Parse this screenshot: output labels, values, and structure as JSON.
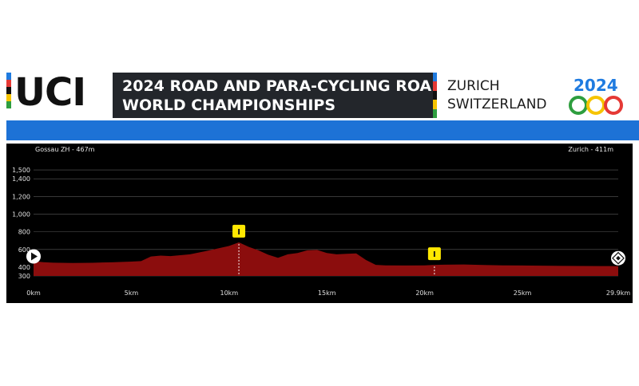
{
  "header": {
    "logo_text": "UCI",
    "title_line1": "2024 ROAD AND PARA-CYCLING ROAD",
    "title_line2": "WORLD CHAMPIONSHIPS",
    "location_city": "ZURICH",
    "location_country": "SWITZERLAND",
    "rainbow_colors": [
      "#1f7be0",
      "#e53935",
      "#111111",
      "#f6c400",
      "#2e9e3f"
    ]
  },
  "colors": {
    "profile_fill": "#8b0d0d",
    "marker": "#ffe800",
    "blue_bar": "#1d72d6"
  },
  "chart_data": {
    "type": "area",
    "title": "",
    "xlabel": "",
    "ylabel": "",
    "start_label": "Gossau ZH - 467m",
    "finish_label": "Zurich - 411m",
    "x_ticks": [
      "0km",
      "5km",
      "10km",
      "15km",
      "20km",
      "25km",
      "29.9km"
    ],
    "y_ticks": [
      "300",
      "400",
      "600",
      "800",
      "1,000",
      "1,200",
      "1,400",
      "1,500"
    ],
    "xlim": [
      0,
      29.9
    ],
    "ylim": [
      300,
      1600
    ],
    "grid": true,
    "series": [
      {
        "x": [
          0,
          0.5,
          1,
          2,
          3,
          4,
          5,
          5.5,
          6,
          6.5,
          7,
          8,
          9,
          10,
          10.5,
          11,
          11.5,
          12,
          12.5,
          13,
          13.5,
          14,
          14.5,
          15,
          15.5,
          16,
          16.5,
          17,
          17.5,
          18,
          19,
          20,
          20.5,
          21,
          22,
          23,
          24,
          25,
          26,
          27,
          28,
          29,
          29.9
        ],
        "y": [
          467,
          456,
          450,
          447,
          449,
          455,
          462,
          468,
          520,
          530,
          525,
          545,
          590,
          640,
          680,
          630,
          590,
          540,
          505,
          545,
          560,
          590,
          595,
          560,
          545,
          550,
          555,
          480,
          425,
          420,
          418,
          420,
          425,
          427,
          430,
          424,
          420,
          418,
          416,
          414,
          413,
          412,
          411
        ]
      }
    ],
    "markers": [
      {
        "label": "I",
        "x": 10.5
      },
      {
        "label": "I",
        "x": 20.5
      }
    ]
  }
}
